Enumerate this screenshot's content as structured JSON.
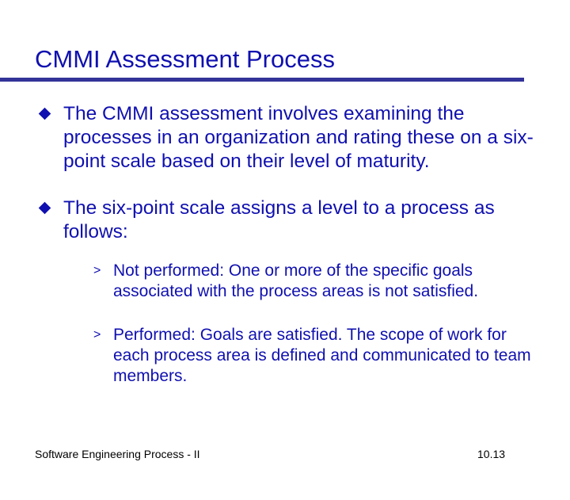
{
  "title": "CMMI Assessment Process",
  "bullets": [
    "The CMMI assessment involves examining the processes in an organization and rating these on a six-point scale based on their level of maturity.",
    "The six-point scale assigns a level to a process as follows:"
  ],
  "sub_bullets": [
    "Not performed: One or more of the specific goals associated with the process areas is not satisfied.",
    "Performed: Goals are satisfied. The scope of work for each process area is defined and communicated to team members."
  ],
  "footer": {
    "left": "Software Engineering Process - II",
    "right": "10.13"
  },
  "colors": {
    "text": "#1010b0",
    "rule": "#333399"
  },
  "icons": {
    "bullet": "diamond-icon",
    "sub_bullet": "arrowhead-icon"
  }
}
